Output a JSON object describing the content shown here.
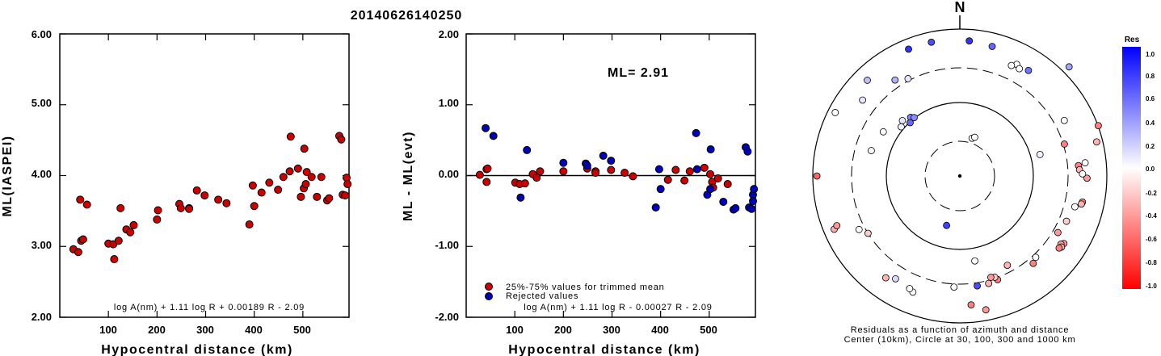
{
  "title": "20140626140250",
  "left_panel": {
    "ylabel": "ML(IASPEI)",
    "xlabel": "Hypocentral distance (km)",
    "formula": "log A(nm) + 1.11 log R + 0.00189 R - 2.09",
    "y_tick_labels": [
      "2.00",
      "3.00",
      "4.00",
      "5.00",
      "6.00"
    ],
    "x_tick_labels": [
      "100",
      "200",
      "300",
      "400",
      "500"
    ]
  },
  "middle_panel": {
    "ylabel": "ML - ML(evt)",
    "xlabel": "Hypocentral distance (km)",
    "ml_label": "ML= 2.91",
    "legend_trimmed": "25%-75% values for trimmed mean",
    "legend_rejected": "Rejected values",
    "formula": "log A(nm) + 1.11 log R - 0.00027 R - 2.09",
    "y_tick_labels": [
      "-2.00",
      "-1.00",
      "0.00",
      "1.00",
      "2.00"
    ],
    "x_tick_labels": [
      "100",
      "200",
      "300",
      "400",
      "500"
    ]
  },
  "polar_panel": {
    "north_label": "N",
    "caption_line1": "Residuals as a function of azimuth and distance",
    "caption_line2": "Center (10km), Circle at 30, 100, 300 and 1000 km",
    "colorbar_title": "Res",
    "colorbar_labels": [
      "1.0",
      "0.8",
      "0.6",
      "0.4",
      "0.2",
      "0.0",
      "-0.2",
      "-0.4",
      "-0.6",
      "-0.8",
      "-1.0"
    ]
  },
  "colors": {
    "trimmed": "#cc0000",
    "rejected": "#0000bb",
    "residual_positive": "#0000ff",
    "residual_negative": "#ff0000"
  },
  "chart_data": [
    {
      "type": "scatter",
      "id": "ml_vs_distance",
      "xlim": [
        0,
        595
      ],
      "ylim": [
        2.0,
        6.0
      ],
      "x_ticks": [
        100,
        200,
        300,
        400,
        500
      ],
      "y_ticks": [
        2.0,
        3.0,
        4.0,
        5.0,
        6.0
      ],
      "points": [
        [
          28,
          2.96
        ],
        [
          38,
          2.92
        ],
        [
          42,
          3.66
        ],
        [
          44,
          3.08
        ],
        [
          48,
          3.1
        ],
        [
          56,
          3.59
        ],
        [
          100,
          3.04
        ],
        [
          110,
          3.03
        ],
        [
          112,
          2.82
        ],
        [
          121,
          3.08
        ],
        [
          125,
          3.54
        ],
        [
          137,
          3.24
        ],
        [
          145,
          3.2
        ],
        [
          152,
          3.3
        ],
        [
          200,
          3.38
        ],
        [
          202,
          3.51
        ],
        [
          246,
          3.6
        ],
        [
          249,
          3.54
        ],
        [
          266,
          3.54
        ],
        [
          266,
          3.53
        ],
        [
          282,
          3.79
        ],
        [
          298,
          3.72
        ],
        [
          326,
          3.66
        ],
        [
          343,
          3.61
        ],
        [
          390,
          3.31
        ],
        [
          397,
          3.86
        ],
        [
          400,
          3.57
        ],
        [
          415,
          3.76
        ],
        [
          431,
          3.9
        ],
        [
          449,
          3.8
        ],
        [
          460,
          3.98
        ],
        [
          473,
          4.06
        ],
        [
          475,
          4.55
        ],
        [
          490,
          4.1
        ],
        [
          496,
          3.7
        ],
        [
          502,
          3.82
        ],
        [
          503,
          4.38
        ],
        [
          506,
          3.88
        ],
        [
          508,
          4.05
        ],
        [
          518,
          3.98
        ],
        [
          529,
          3.7
        ],
        [
          538,
          3.98
        ],
        [
          550,
          3.65
        ],
        [
          554,
          3.68
        ],
        [
          575,
          4.56
        ],
        [
          579,
          4.51
        ],
        [
          582,
          3.73
        ],
        [
          587,
          3.72
        ],
        [
          590,
          3.97
        ],
        [
          592,
          3.88
        ]
      ]
    },
    {
      "type": "scatter",
      "id": "residual_vs_distance",
      "xlim": [
        0,
        595
      ],
      "ylim": [
        -2.0,
        2.0
      ],
      "x_ticks": [
        100,
        200,
        300,
        400,
        500
      ],
      "y_ticks": [
        -2.0,
        -1.0,
        0.0,
        1.0,
        2.0
      ],
      "reference_line": 0.0,
      "series": [
        {
          "name": "25%-75% values for trimmed mean",
          "points": [
            [
              28,
              0.01
            ],
            [
              42,
              0.09
            ],
            [
              44,
              0.1
            ],
            [
              42,
              -0.09
            ],
            [
              101,
              -0.1
            ],
            [
              110,
              -0.12
            ],
            [
              121,
              -0.11
            ],
            [
              137,
              0.02
            ],
            [
              145,
              -0.03
            ],
            [
              152,
              0.06
            ],
            [
              200,
              0.06
            ],
            [
              249,
              0.1
            ],
            [
              266,
              0.06
            ],
            [
              266,
              0.04
            ],
            [
              298,
              0.08
            ],
            [
              326,
              0.04
            ],
            [
              343,
              -0.01
            ],
            [
              415,
              -0.06
            ],
            [
              431,
              0.08
            ],
            [
              449,
              -0.07
            ],
            [
              460,
              0.06
            ],
            [
              490,
              0.11
            ],
            [
              502,
              0.02
            ],
            [
              506,
              -0.09
            ],
            [
              508,
              -0.17
            ],
            [
              518,
              -0.04
            ],
            [
              538,
              -0.12
            ]
          ]
        },
        {
          "name": "Rejected values",
          "points": [
            [
              40,
              0.67
            ],
            [
              56,
              0.56
            ],
            [
              112,
              -0.31
            ],
            [
              125,
              0.36
            ],
            [
              200,
              0.18
            ],
            [
              246,
              0.17
            ],
            [
              249,
              0.14
            ],
            [
              282,
              0.28
            ],
            [
              298,
              0.21
            ],
            [
              390,
              -0.45
            ],
            [
              397,
              0.09
            ],
            [
              400,
              -0.19
            ],
            [
              473,
              0.6
            ],
            [
              475,
              0.09
            ],
            [
              496,
              -0.27
            ],
            [
              503,
              0.37
            ],
            [
              502,
              -0.19
            ],
            [
              529,
              -0.37
            ],
            [
              550,
              -0.48
            ],
            [
              554,
              -0.46
            ],
            [
              575,
              0.4
            ],
            [
              579,
              0.34
            ],
            [
              582,
              -0.45
            ],
            [
              587,
              -0.47
            ],
            [
              590,
              -0.27
            ],
            [
              592,
              -0.19
            ],
            [
              590,
              -0.36
            ]
          ]
        }
      ]
    },
    {
      "type": "scatter",
      "id": "residual_polar",
      "coordinate_system": "polar (azimuth deg clockwise from N, log distance)",
      "center_km": 10,
      "circles_km": [
        30,
        100,
        300,
        1000
      ],
      "color_range": [
        -1.0,
        1.0
      ],
      "points": [
        [
          -22,
          730,
          0.8
        ],
        [
          -12,
          730,
          0.7
        ],
        [
          4,
          700,
          0.8
        ],
        [
          14,
          660,
          0.6
        ],
        [
          -44,
          650,
          0.25
        ],
        [
          -34,
          380,
          0.3
        ],
        [
          -28,
          320,
          0.1
        ],
        [
          -52,
          480,
          0.1
        ],
        [
          -60,
          160,
          0.0
        ],
        [
          -40,
          110,
          0.5
        ],
        [
          -38,
          102,
          0.45
        ],
        [
          -43,
          98,
          0.6
        ],
        [
          -50,
          110,
          0.05
        ],
        [
          -46,
          122,
          0.1
        ],
        [
          27,
          510,
          0.0
        ],
        [
          25,
          460,
          0.0
        ],
        [
          29,
          470,
          0.0
        ],
        [
          33,
          520,
          0.55
        ],
        [
          45,
          1260,
          0.35
        ],
        [
          18,
          35,
          0.0
        ],
        [
          21,
          37,
          0.0
        ],
        [
          62,
          410,
          0.0
        ],
        [
          75,
          135,
          0.05
        ],
        [
          73,
          310,
          -0.5
        ],
        [
          70,
          1010,
          -0.5
        ],
        [
          76,
          830,
          -0.3
        ],
        [
          84,
          520,
          0.0
        ],
        [
          85,
          420,
          -0.5
        ],
        [
          87,
          430,
          -0.3
        ],
        [
          91,
          540,
          -0.4
        ],
        [
          89,
          470,
          0.0
        ],
        [
          102,
          510,
          -0.5
        ],
        [
          103,
          500,
          -0.3
        ],
        [
          105,
          420,
          0.0
        ],
        [
          113,
          380,
          -0.2
        ],
        [
          120,
          350,
          -0.4
        ],
        [
          123,
          490,
          -0.4
        ],
        [
          124,
          460,
          -0.4
        ],
        [
          125,
          490,
          -0.3
        ],
        [
          126,
          470,
          -0.5
        ],
        [
          137,
          330,
          0.0
        ],
        [
          140,
          360,
          -0.5
        ],
        [
          152,
          240,
          -0.3
        ],
        [
          160,
          320,
          -0.5
        ],
        [
          161,
          290,
          -0.2
        ],
        [
          163,
          280,
          -0.4
        ],
        [
          165,
          330,
          -0.3
        ],
        [
          171,
          330,
          0.7
        ],
        [
          169,
          720,
          -0.4
        ],
        [
          175,
          580,
          -0.5
        ],
        [
          183,
          330,
          0.0
        ],
        [
          170,
          150,
          0.0
        ],
        [
          195,
          50,
          0.75
        ],
        [
          202,
          510,
          0.0
        ],
        [
          204,
          480,
          0.0
        ],
        [
          212,
          450,
          0.15
        ],
        [
          216,
          520,
          -0.3
        ],
        [
          242,
          360,
          0.0
        ],
        [
          247,
          720,
          -0.3
        ],
        [
          238,
          300,
          -0.2
        ],
        [
          248,
          640,
          -0.4
        ],
        [
          270,
          880,
          -0.6
        ],
        [
          286,
          180,
          0.0
        ],
        [
          297,
          800,
          0.0
        ]
      ]
    }
  ]
}
